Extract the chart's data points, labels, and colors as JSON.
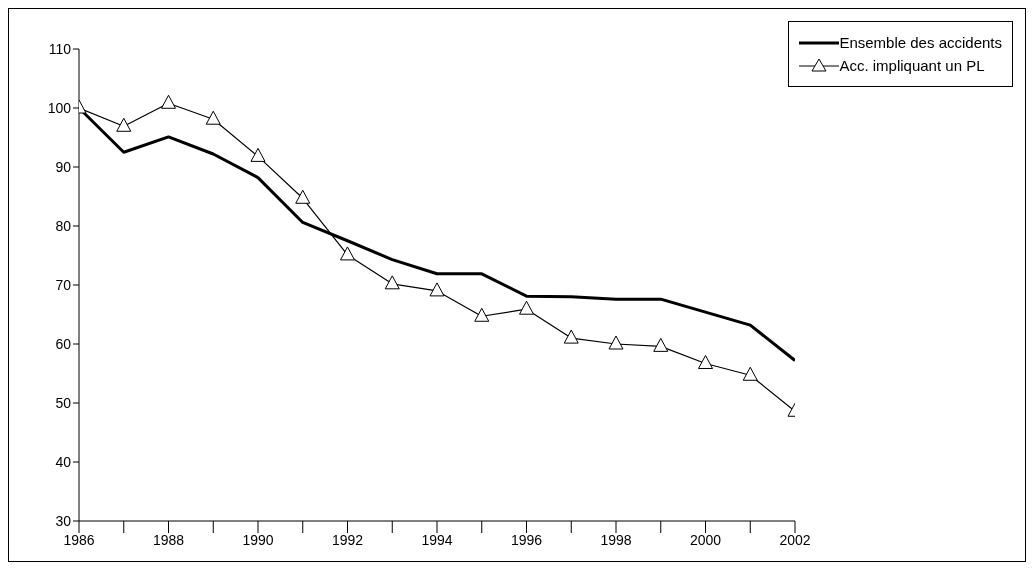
{
  "chart_data": {
    "type": "line",
    "x": [
      1986,
      1987,
      1988,
      1989,
      1990,
      1991,
      1992,
      1993,
      1994,
      1995,
      1996,
      1997,
      1998,
      1999,
      2000,
      2001,
      2002
    ],
    "series": [
      {
        "name": "Ensemble des accidents",
        "color": "#000000",
        "marker": "none",
        "values": [
          100,
          92.5,
          95.1,
          92.2,
          88.2,
          80.6,
          77.5,
          74.3,
          71.9,
          71.9,
          68.1,
          68,
          67.6,
          67.6,
          65.4,
          63.2,
          57.2
        ]
      },
      {
        "name": "Acc. impliquant un PL",
        "color": "#000000",
        "marker": "triangle",
        "values": [
          100,
          96.9,
          100.8,
          98.1,
          91.8,
          84.7,
          75.1,
          70.2,
          69,
          64.7,
          65.9,
          61,
          60,
          59.6,
          56.7,
          54.7,
          48.6
        ]
      }
    ],
    "xlim": [
      1986,
      2002
    ],
    "xticks": [
      1986,
      {
        "value": 1987,
        "label": null
      },
      1988,
      {
        "value": 1989,
        "label": null
      },
      1990,
      {
        "value": 1991,
        "label": null
      },
      1992,
      {
        "value": 1993,
        "label": null
      },
      1994,
      {
        "value": 1995,
        "label": null
      },
      1996,
      {
        "value": 1997,
        "label": null
      },
      1998,
      {
        "value": 1999,
        "label": null
      },
      2000,
      {
        "value": 2001,
        "label": null
      },
      2002
    ],
    "ylim": [
      30,
      110
    ],
    "yticks": [
      30,
      40,
      50,
      60,
      70,
      80,
      90,
      100,
      110
    ],
    "grid": false,
    "legend": "top right"
  }
}
